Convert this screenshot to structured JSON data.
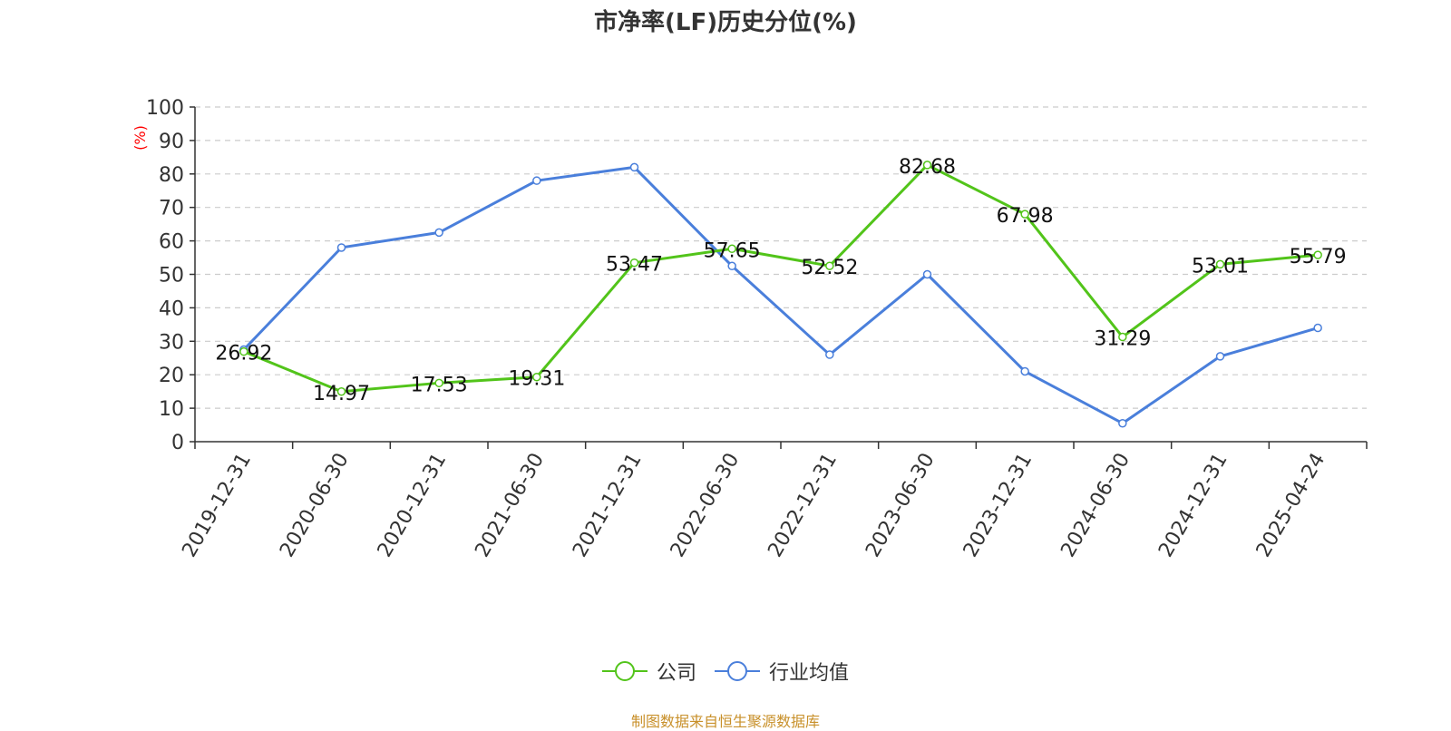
{
  "chart_data": {
    "type": "line",
    "title": "市净率(LF)历史分位(%)",
    "ylabel": "(%)",
    "ylim": [
      0,
      100
    ],
    "yticks": [
      0,
      10,
      20,
      30,
      40,
      50,
      60,
      70,
      80,
      90,
      100
    ],
    "categories": [
      "2019-12-31",
      "2020-06-30",
      "2020-12-31",
      "2021-06-30",
      "2021-12-31",
      "2022-06-30",
      "2022-12-31",
      "2023-06-30",
      "2023-12-31",
      "2024-06-30",
      "2024-12-31",
      "2025-04-24"
    ],
    "series": [
      {
        "name": "公司",
        "color": "#52c41a",
        "values": [
          26.92,
          14.97,
          17.53,
          19.31,
          53.47,
          57.65,
          52.52,
          82.68,
          67.98,
          31.29,
          53.01,
          55.79
        ],
        "labels": [
          "26.92",
          "14.97",
          "17.53",
          "19.31",
          "53.47",
          "57.65",
          "52.52",
          "82.68",
          "67.98",
          "31.29",
          "53.01",
          "55.79"
        ]
      },
      {
        "name": "行业均值",
        "color": "#4a7fdb",
        "values": [
          27.5,
          58,
          62.5,
          78,
          82,
          52.5,
          26,
          50,
          21,
          5.5,
          25.5,
          34
        ]
      }
    ],
    "grid": true,
    "legend_position": "bottom-center"
  },
  "footer": {
    "source": "制图数据来自恒生聚源数据库"
  }
}
